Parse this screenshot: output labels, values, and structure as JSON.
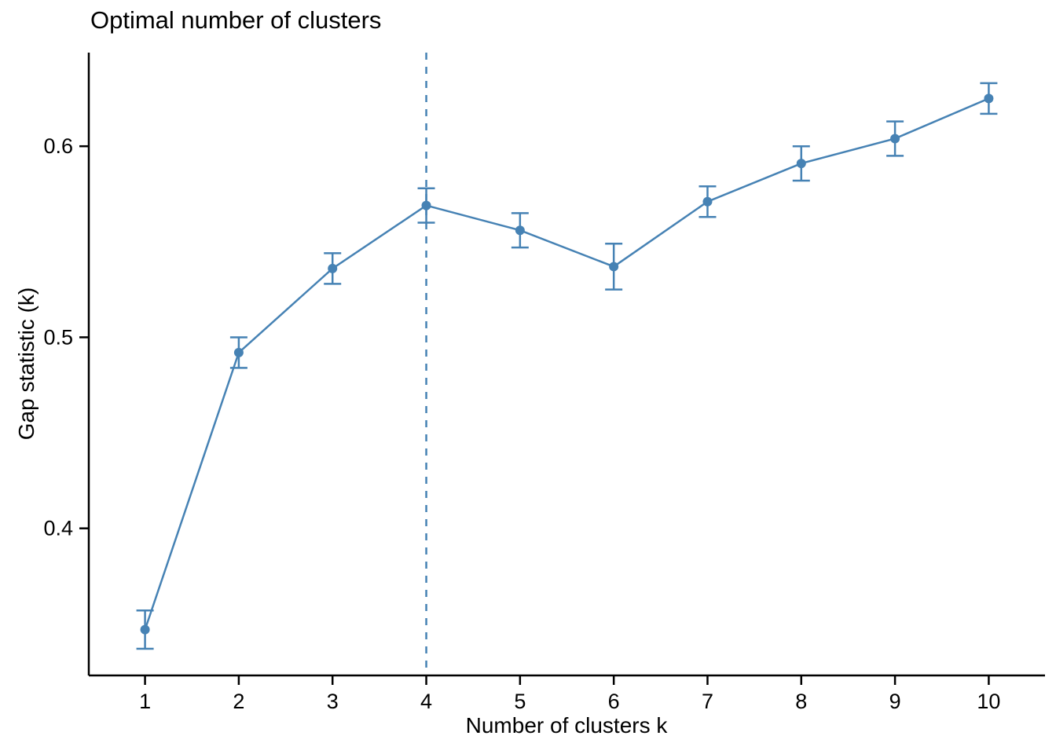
{
  "chart_data": {
    "type": "line",
    "title": "Optimal number of clusters",
    "xlabel": "Number of clusters k",
    "ylabel": "Gap statistic (k)",
    "x": [
      1,
      2,
      3,
      4,
      5,
      6,
      7,
      8,
      9,
      10
    ],
    "series": [
      {
        "name": "Gap statistic",
        "values": [
          0.347,
          0.492,
          0.536,
          0.569,
          0.556,
          0.537,
          0.571,
          0.591,
          0.604,
          0.625
        ],
        "stderr": [
          0.01,
          0.008,
          0.008,
          0.009,
          0.009,
          0.012,
          0.008,
          0.009,
          0.009,
          0.008
        ]
      }
    ],
    "optimal_k_dashed_line_x": 4,
    "x_tick_labels": [
      "1",
      "2",
      "3",
      "4",
      "5",
      "6",
      "7",
      "8",
      "9",
      "10"
    ],
    "y_ticks": [
      0.4,
      0.5,
      0.6
    ],
    "y_tick_labels": [
      "0.4",
      "0.5",
      "0.6"
    ],
    "xlim": [
      0.4,
      10.6
    ],
    "ylim": [
      0.323,
      0.649
    ],
    "grid": "off",
    "legend": "none",
    "colors": {
      "line": "#4682B4",
      "marker": "#4682B4",
      "error_bar": "#4682B4",
      "dashed_line": "#4682B4",
      "axis": "#000000",
      "text": "#000000",
      "background": "#ffffff"
    }
  }
}
